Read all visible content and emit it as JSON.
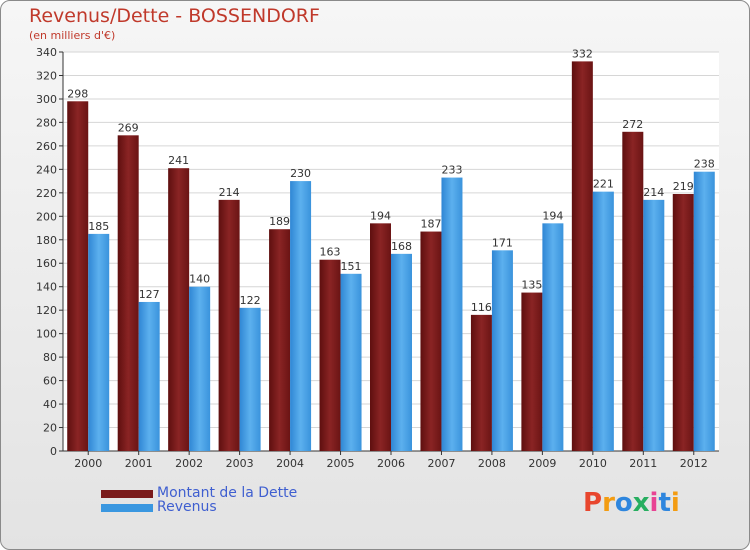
{
  "header": {
    "title": "Revenus/Dette - BOSSENDORF",
    "subtitle": "(en milliers d'€)"
  },
  "chart_data": {
    "type": "bar",
    "categories": [
      "2000",
      "2001",
      "2002",
      "2003",
      "2004",
      "2005",
      "2006",
      "2007",
      "2008",
      "2009",
      "2010",
      "2011",
      "2012"
    ],
    "series": [
      {
        "name": "Montant de la Dette",
        "color": "#7a1a1a",
        "values": [
          298,
          269,
          241,
          214,
          189,
          163,
          194,
          187,
          116,
          135,
          332,
          272,
          219
        ]
      },
      {
        "name": "Revenus",
        "color": "#3a97e0",
        "values": [
          185,
          127,
          140,
          122,
          230,
          151,
          168,
          233,
          171,
          194,
          221,
          214,
          238
        ]
      }
    ],
    "ylim": [
      0,
      340
    ],
    "yticks": [
      0,
      20,
      40,
      60,
      80,
      100,
      120,
      140,
      160,
      180,
      200,
      220,
      240,
      260,
      280,
      300,
      320,
      340
    ],
    "grid": true,
    "legend_position": "bottom-left",
    "data_labels": true
  },
  "legend": {
    "items": [
      {
        "label": "Montant de la Dette",
        "color": "#7a1a1a"
      },
      {
        "label": "Revenus",
        "color": "#3a97e0"
      }
    ]
  },
  "brand": {
    "logo_text": "Proxiti",
    "logo_colors": [
      "#e8462e",
      "#f39c12",
      "#2e86de",
      "#27ae60",
      "#e84393",
      "#2e86de",
      "#f39c12"
    ]
  }
}
